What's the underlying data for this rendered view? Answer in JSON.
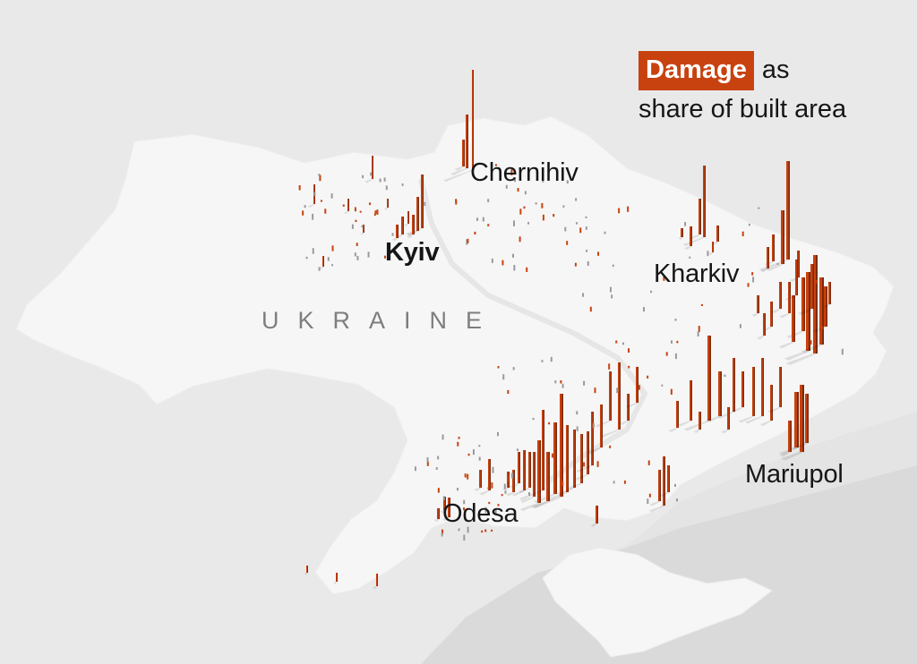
{
  "legend": {
    "badge": "Damage",
    "suffix": "as",
    "line2": "share of built area"
  },
  "country_label": "UKRAINE",
  "cities": {
    "kyiv": "Kyiv",
    "chernihiv": "Chernihiv",
    "kharkiv": "Kharkiv",
    "odesa": "Odesa",
    "mariupol": "Mariupol"
  },
  "colors": {
    "background": "#e4e4e4",
    "land": "#f6f6f6",
    "sea": "#d9d9d9",
    "damage_spike": "#c8420f",
    "damage_dark": "#7a2a0c",
    "badge": "#c8420f"
  }
}
